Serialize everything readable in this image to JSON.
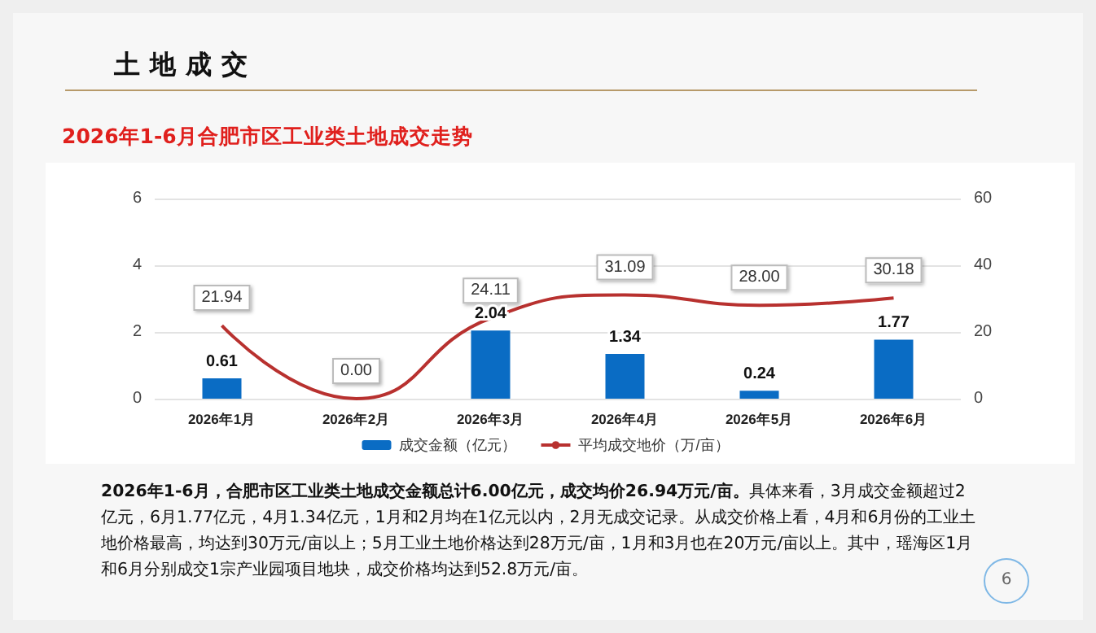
{
  "chart_data": {
    "type": "bar",
    "title": "土地成交",
    "subtitle": "2026年1-6月合肥市区工业类土地成交走势",
    "categories": [
      "2026年1月",
      "2026年2月",
      "2026年3月",
      "2026年4月",
      "2026年5月",
      "2026年6月"
    ],
    "series": [
      {
        "name": "成交金额（亿元）",
        "color": "#0a6cc4",
        "values": [
          0.61,
          0,
          2.04,
          1.34,
          0.24,
          1.77
        ],
        "value_labels": [
          "0.61",
          null,
          "2.04",
          "1.34",
          "0.24",
          "1.77"
        ]
      },
      {
        "name": "平均成交地价（万/亩）",
        "type": "line",
        "axis": "y2",
        "color": "#b8312f",
        "values": [
          21.94,
          0,
          24.11,
          31.09,
          28.0,
          30.18
        ],
        "value_labels": [
          "21.94",
          "0.00",
          "24.11",
          "31.09",
          "28.00",
          "30.18"
        ]
      }
    ],
    "ylim": [
      0,
      6
    ],
    "yticks": [
      0,
      2,
      4,
      6
    ],
    "y2lim": [
      0,
      60
    ],
    "y2ticks": [
      0,
      20,
      40,
      60
    ],
    "grid": "y",
    "legend": "bottom",
    "marker": "none",
    "annotations": [
      "2026年1-6月，合肥市区工业类土地成交金额总计6.00亿元，成交均价26.94万元/亩。",
      "具体来看，3月成交金额超过2亿元，6月1.77亿元，4月1.34亿元，1月和2月均在1亿元以内，2月无成交记录。从成交价格上看，4月和6月份的工业土地价格最高，均达到30万元/亩以上；5月工业土地价格达到28万元/亩，1月和3月也在20万元/亩以上。其中，瑶海区1月和6月分别成交1宗产业园项目地块，成交价格均达到52.8万元/亩。",
      "6"
    ]
  }
}
